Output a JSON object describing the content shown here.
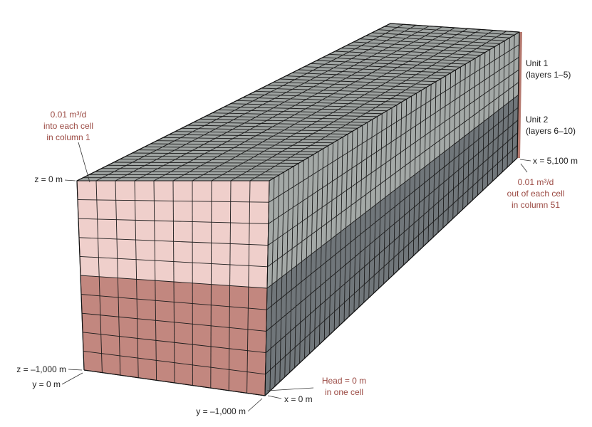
{
  "model": {
    "columns": 51,
    "rows": 10,
    "layers": 10,
    "unit1_layers": 5,
    "unit2_layers": 5
  },
  "labels": {
    "unit1": [
      "Unit 1",
      "(layers 1–5)"
    ],
    "unit2": [
      "Unit 2",
      "(layers 6–10)"
    ],
    "inflow": [
      "0.01 m³/d",
      "into each cell",
      "in column 1"
    ],
    "outflow": [
      "0.01 m³/d",
      "out of each cell",
      "in column 51"
    ],
    "head": [
      "Head = 0 m",
      "in one cell"
    ],
    "z_top": "z = 0 m",
    "z_bottom": "z = –1,000 m",
    "y_zero": "y = 0 m",
    "y_far": "y = –1,000 m",
    "x_zero": "x = 0 m",
    "x_far": "x = 5,100 m"
  },
  "colors": {
    "top_face": "#9ea3a1",
    "side_upper": "#a4a9a7",
    "side_lower": "#70767a",
    "front_upper": "#efcfcb",
    "front_lower": "#c2877f",
    "back_lower": "#b5796f",
    "grid_line": "#1c1c1c",
    "label_red": "#9b4a43",
    "label_dark": "#222222"
  }
}
